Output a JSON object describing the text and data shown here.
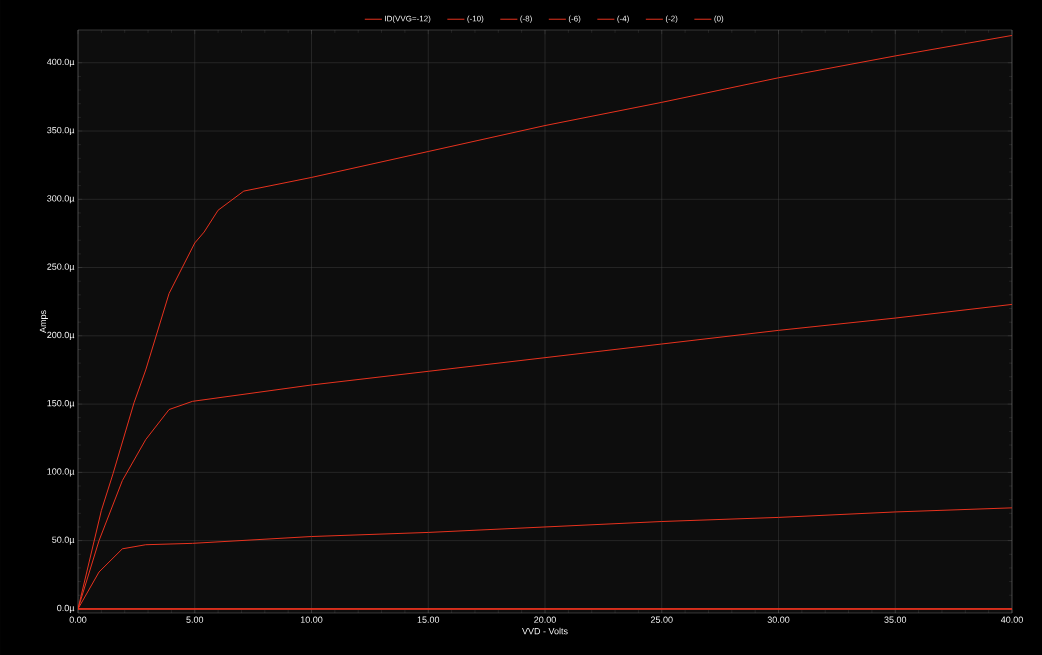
{
  "chart_data": {
    "type": "line",
    "xlabel": "VVD - Volts",
    "ylabel": "Amps",
    "xlim": [
      0,
      40
    ],
    "ylim": [
      -3,
      424
    ],
    "xticks": [
      {
        "value": 0,
        "label": "0.00"
      },
      {
        "value": 5,
        "label": "5.00"
      },
      {
        "value": 10,
        "label": "10.00"
      },
      {
        "value": 15,
        "label": "15.00"
      },
      {
        "value": 20,
        "label": "20.00"
      },
      {
        "value": 25,
        "label": "25.00"
      },
      {
        "value": 30,
        "label": "30.00"
      },
      {
        "value": 35,
        "label": "35.00"
      },
      {
        "value": 40,
        "label": "40.00"
      }
    ],
    "yticks": [
      {
        "value": 0,
        "label": "0.0µ"
      },
      {
        "value": 50,
        "label": "50.0µ"
      },
      {
        "value": 100,
        "label": "100.0µ"
      },
      {
        "value": 150,
        "label": "150.0µ"
      },
      {
        "value": 200,
        "label": "200.0µ"
      },
      {
        "value": 250,
        "label": "250.0µ"
      },
      {
        "value": 300,
        "label": "300.0µ"
      },
      {
        "value": 350,
        "label": "350.0µ"
      },
      {
        "value": 400,
        "label": "400.0µ"
      }
    ],
    "grid": true,
    "legend": "top",
    "series": [
      {
        "name": "ID(VVG=-12)",
        "color": "#e8321e",
        "x": [
          0,
          1,
          1.5,
          2.4,
          2.9,
          3.9,
          5,
          5.4,
          6,
          7.1,
          10,
          15,
          20,
          25,
          30,
          35,
          40
        ],
        "values": [
          0,
          72,
          99,
          151,
          175,
          231,
          268,
          276,
          292,
          306,
          316,
          335,
          354,
          371,
          389,
          405,
          420
        ]
      },
      {
        "name": "(-10)",
        "color": "#e8321e",
        "x": [
          0,
          0.9,
          1.9,
          2.9,
          3.9,
          4.9,
          10,
          15,
          20,
          25,
          30,
          35,
          40
        ],
        "values": [
          0,
          50,
          94,
          124,
          146,
          152,
          164,
          174,
          184,
          194,
          204,
          213,
          223
        ]
      },
      {
        "name": "(-8)",
        "color": "#e8321e",
        "x": [
          0,
          0.9,
          1.9,
          2.9,
          4.9,
          10,
          15,
          20,
          25,
          30,
          35,
          40
        ],
        "values": [
          0,
          27,
          44,
          47,
          48,
          53,
          56,
          60,
          64,
          67,
          71,
          74
        ]
      },
      {
        "name": "(-6)",
        "color": "#e8321e",
        "x": [
          0,
          40
        ],
        "values": [
          0,
          0
        ]
      },
      {
        "name": "(-4)",
        "color": "#e8321e",
        "x": [
          0,
          40
        ],
        "values": [
          0,
          0
        ]
      },
      {
        "name": "(-2)",
        "color": "#e8321e",
        "x": [
          0,
          40
        ],
        "values": [
          0,
          0
        ]
      },
      {
        "name": "(0)",
        "color": "#e8321e",
        "x": [
          0,
          40
        ],
        "values": [
          0,
          0
        ]
      }
    ]
  }
}
